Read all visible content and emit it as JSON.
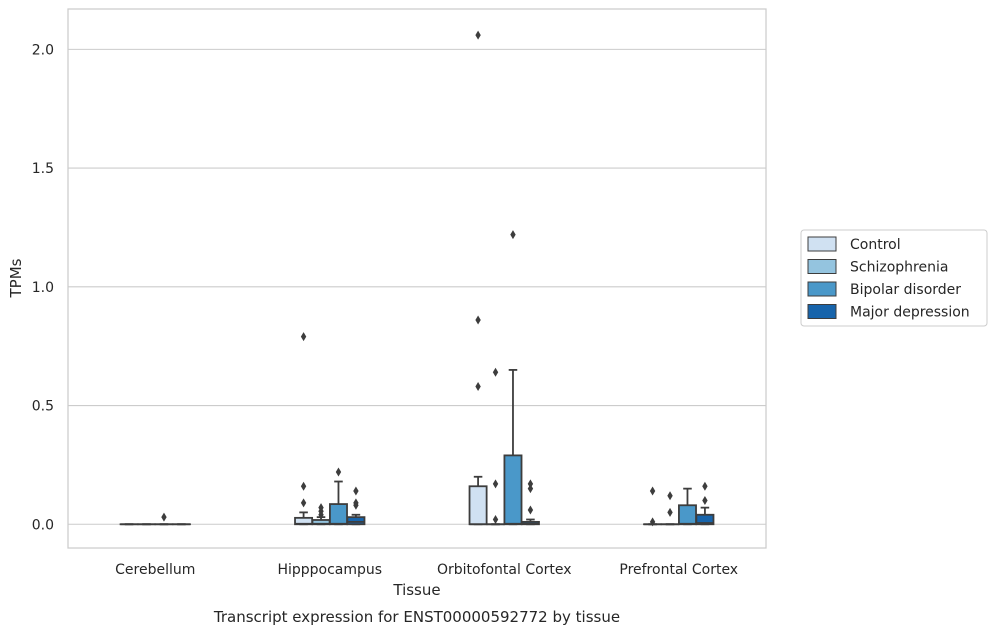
{
  "chart_data": {
    "type": "box",
    "xlabel": "Tissue",
    "ylabel": "TPMs",
    "caption": "Transcript expression for ENST00000592772 by tissue",
    "ylim": [
      -0.1,
      2.17
    ],
    "yticks": [
      0.0,
      0.5,
      1.0,
      1.5,
      2.0
    ],
    "ytick_labels": [
      "0.0",
      "0.5",
      "1.0",
      "1.5",
      "2.0"
    ],
    "grid": "horizontal",
    "legend_position": "right",
    "categories": [
      "Cerebellum",
      "Hipppocampus",
      "Orbitofontal Cortex",
      "Prefrontal Cortex"
    ],
    "series": [
      {
        "name": "Control",
        "color": "#d0e1f2",
        "boxes": [
          {
            "q1": 0,
            "median": 0,
            "q3": 0,
            "whislo": 0,
            "whishi": 0,
            "fliers": []
          },
          {
            "q1": 0,
            "median": 0.002,
            "q3": 0.027,
            "whislo": 0,
            "whishi": 0.05,
            "fliers": [
              0.09,
              0.16,
              0.79
            ]
          },
          {
            "q1": 0,
            "median": 0,
            "q3": 0.16,
            "whislo": 0,
            "whishi": 0.2,
            "fliers": [
              0.58,
              0.86,
              2.06
            ]
          },
          {
            "q1": 0,
            "median": 0,
            "q3": 0,
            "whislo": 0,
            "whishi": 0,
            "fliers": [
              0.01,
              0.14
            ]
          }
        ]
      },
      {
        "name": "Schizophrenia",
        "color": "#94c4df",
        "boxes": [
          {
            "q1": 0,
            "median": 0,
            "q3": 0,
            "whislo": 0,
            "whishi": 0,
            "fliers": []
          },
          {
            "q1": 0,
            "median": 0.002,
            "q3": 0.018,
            "whislo": 0,
            "whishi": 0.03,
            "fliers": [
              0.04,
              0.055,
              0.07
            ]
          },
          {
            "q1": 0,
            "median": 0,
            "q3": 0,
            "whislo": 0,
            "whishi": 0,
            "fliers": [
              0.02,
              0.17,
              0.64
            ]
          },
          {
            "q1": 0,
            "median": 0,
            "q3": 0,
            "whislo": 0,
            "whishi": 0,
            "fliers": [
              0.05,
              0.12
            ]
          }
        ]
      },
      {
        "name": "Bipolar disorder",
        "color": "#4a98c9",
        "boxes": [
          {
            "q1": 0,
            "median": 0,
            "q3": 0,
            "whislo": 0,
            "whishi": 0,
            "fliers": [
              0.03
            ]
          },
          {
            "q1": 0,
            "median": 0.002,
            "q3": 0.085,
            "whislo": 0,
            "whishi": 0.18,
            "fliers": [
              0.22
            ]
          },
          {
            "q1": 0,
            "median": 0.002,
            "q3": 0.29,
            "whislo": 0,
            "whishi": 0.65,
            "fliers": [
              1.22
            ]
          },
          {
            "q1": 0,
            "median": 0.002,
            "q3": 0.08,
            "whislo": 0,
            "whishi": 0.15,
            "fliers": []
          }
        ]
      },
      {
        "name": "Major depression",
        "color": "#1764ab",
        "boxes": [
          {
            "q1": 0,
            "median": 0,
            "q3": 0,
            "whislo": 0,
            "whishi": 0,
            "fliers": []
          },
          {
            "q1": 0,
            "median": 0.01,
            "q3": 0.03,
            "whislo": 0,
            "whishi": 0.04,
            "fliers": [
              0.08,
              0.09,
              0.14
            ]
          },
          {
            "q1": 0,
            "median": 0.002,
            "q3": 0.01,
            "whislo": 0,
            "whishi": 0.02,
            "fliers": [
              0.06,
              0.15,
              0.17
            ]
          },
          {
            "q1": 0,
            "median": 0.005,
            "q3": 0.04,
            "whislo": 0,
            "whishi": 0.07,
            "fliers": [
              0.1,
              0.16
            ]
          }
        ]
      }
    ]
  }
}
